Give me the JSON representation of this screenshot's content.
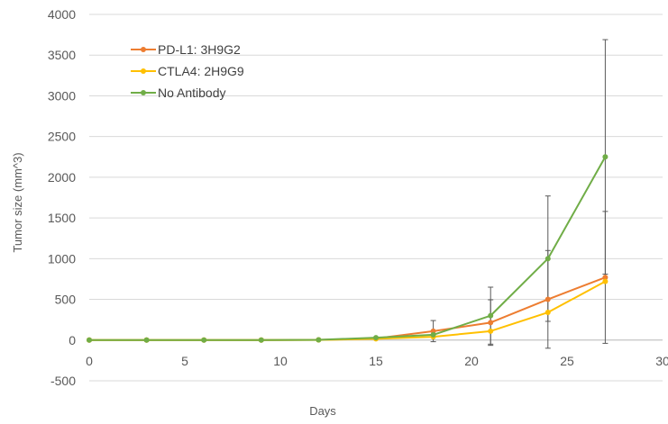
{
  "chart_data": {
    "type": "line",
    "title": "",
    "xlabel": "Days",
    "ylabel": "Tumor size (mm^3)",
    "xlim": [
      0,
      30
    ],
    "ylim": [
      -500,
      4000
    ],
    "x_ticks": [
      0,
      5,
      10,
      15,
      20,
      25,
      30
    ],
    "x_tick_labels": [
      "0",
      "5",
      "10",
      "15",
      "20",
      "25",
      "30"
    ],
    "y_ticks": [
      -500,
      0,
      500,
      1000,
      1500,
      2000,
      2500,
      3000,
      3500,
      4000
    ],
    "y_tick_labels": [
      "-500",
      "0",
      "500",
      "1000",
      "1500",
      "2000",
      "2500",
      "3000",
      "3500",
      "4000"
    ],
    "grid": "horizontal",
    "legend_position": "top-left",
    "series": [
      {
        "name": "PD-L1: 3H9G2",
        "color": "#ED7D31",
        "x": [
          0,
          3,
          6,
          9,
          12,
          15,
          18,
          21,
          24,
          27
        ],
        "y": [
          0,
          0,
          0,
          0,
          3,
          20,
          110,
          215,
          500,
          770
        ],
        "error": [
          0,
          0,
          0,
          0,
          0,
          0,
          130,
          280,
          600,
          810
        ]
      },
      {
        "name": "CTLA4: 2H9G9",
        "color": "#FFC000",
        "x": [
          0,
          3,
          6,
          9,
          12,
          15,
          18,
          21,
          24,
          27
        ],
        "y": [
          0,
          0,
          0,
          0,
          2,
          15,
          40,
          110,
          340,
          720
        ],
        "error": [
          0,
          0,
          0,
          0,
          0,
          0,
          0,
          0,
          0,
          0
        ]
      },
      {
        "name": "No Antibody",
        "color": "#70AD47",
        "x": [
          0,
          3,
          6,
          9,
          12,
          15,
          18,
          21,
          24,
          27
        ],
        "y": [
          0,
          0,
          0,
          0,
          3,
          30,
          65,
          300,
          1000,
          2250
        ],
        "error": [
          0,
          0,
          0,
          0,
          0,
          0,
          0,
          350,
          770,
          1440
        ]
      }
    ]
  }
}
